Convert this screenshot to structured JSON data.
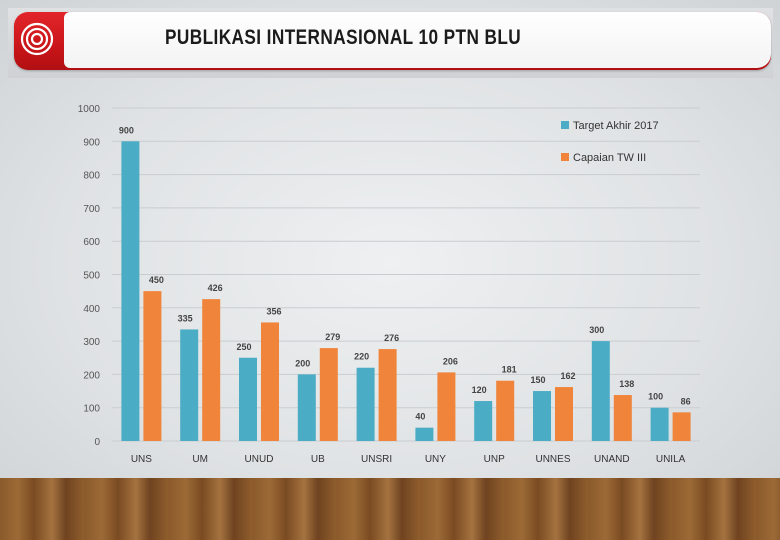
{
  "slide": {
    "title": "PUBLIKASI INTERNASIONAL 10 PTN BLU"
  },
  "colors": {
    "target": "#4bacc6",
    "achieved": "#f0843a",
    "brand_red": "#c91519"
  },
  "chart_data": {
    "type": "bar",
    "title": "",
    "xlabel": "",
    "ylabel": "",
    "categories": [
      "UNS",
      "UM",
      "UNUD",
      "UB",
      "UNSRI",
      "UNY",
      "UNP",
      "UNNES",
      "UNAND",
      "UNILA"
    ],
    "series": [
      {
        "name": "Target Akhir 2017",
        "values": [
          900,
          335,
          250,
          200,
          220,
          40,
          120,
          150,
          300,
          100
        ]
      },
      {
        "name": "Capaian TW III",
        "values": [
          450,
          426,
          356,
          279,
          276,
          206,
          181,
          162,
          138,
          86
        ]
      }
    ],
    "ylim": [
      0,
      1000
    ],
    "yticks": [
      0,
      100,
      200,
      300,
      400,
      500,
      600,
      700,
      800,
      900,
      1000
    ],
    "grid": true,
    "legend_position": "top-right",
    "data_labels": true
  }
}
